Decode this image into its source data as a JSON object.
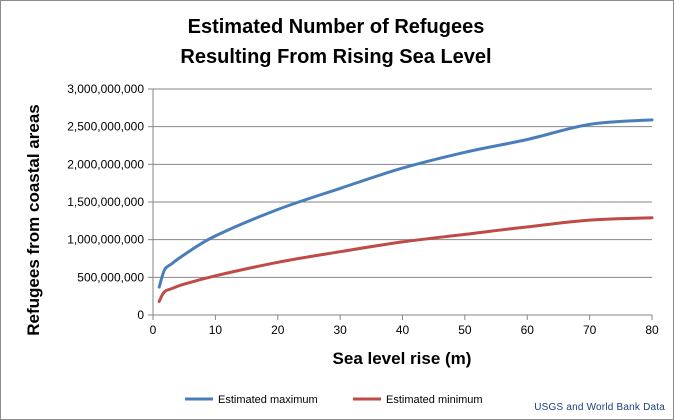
{
  "chart_data": {
    "type": "line",
    "title_lines": [
      "Estimated Number of Refugees",
      "Resulting From Rising Sea Level"
    ],
    "xlabel": "Sea level rise (m)",
    "ylabel": "Refugees from coastal areas",
    "xlim": [
      0,
      80
    ],
    "ylim": [
      0,
      3000000000
    ],
    "x_ticks": [
      0,
      10,
      20,
      30,
      40,
      50,
      60,
      70,
      80
    ],
    "x_tick_labels": [
      "0",
      "10",
      "20",
      "30",
      "40",
      "50",
      "60",
      "70",
      "80"
    ],
    "y_ticks": [
      0,
      500000000,
      1000000000,
      1500000000,
      2000000000,
      2500000000,
      3000000000
    ],
    "y_tick_labels": [
      "0",
      "500,000,000",
      "1,000,000,000",
      "1,500,000,000",
      "2,000,000,000",
      "2,500,000,000",
      "3,000,000,000"
    ],
    "grid": "horizontal",
    "legend_position": "bottom",
    "series": [
      {
        "name": "Estimated maximum",
        "color": "#4a7ebb",
        "points": [
          [
            1,
            370000000
          ],
          [
            1.5,
            520000000
          ],
          [
            2,
            620000000
          ],
          [
            3,
            680000000
          ],
          [
            5,
            800000000
          ],
          [
            10,
            1050000000
          ],
          [
            20,
            1400000000
          ],
          [
            30,
            1680000000
          ],
          [
            40,
            1950000000
          ],
          [
            50,
            2160000000
          ],
          [
            60,
            2330000000
          ],
          [
            70,
            2530000000
          ],
          [
            80,
            2590000000
          ]
        ]
      },
      {
        "name": "Estimated minimum",
        "color": "#be4b48",
        "points": [
          [
            1,
            180000000
          ],
          [
            1.5,
            270000000
          ],
          [
            2,
            320000000
          ],
          [
            3,
            350000000
          ],
          [
            5,
            410000000
          ],
          [
            10,
            520000000
          ],
          [
            20,
            700000000
          ],
          [
            30,
            840000000
          ],
          [
            40,
            970000000
          ],
          [
            50,
            1070000000
          ],
          [
            60,
            1170000000
          ],
          [
            70,
            1260000000
          ],
          [
            80,
            1290000000
          ]
        ]
      }
    ]
  },
  "source": "USGS and World Bank Data"
}
